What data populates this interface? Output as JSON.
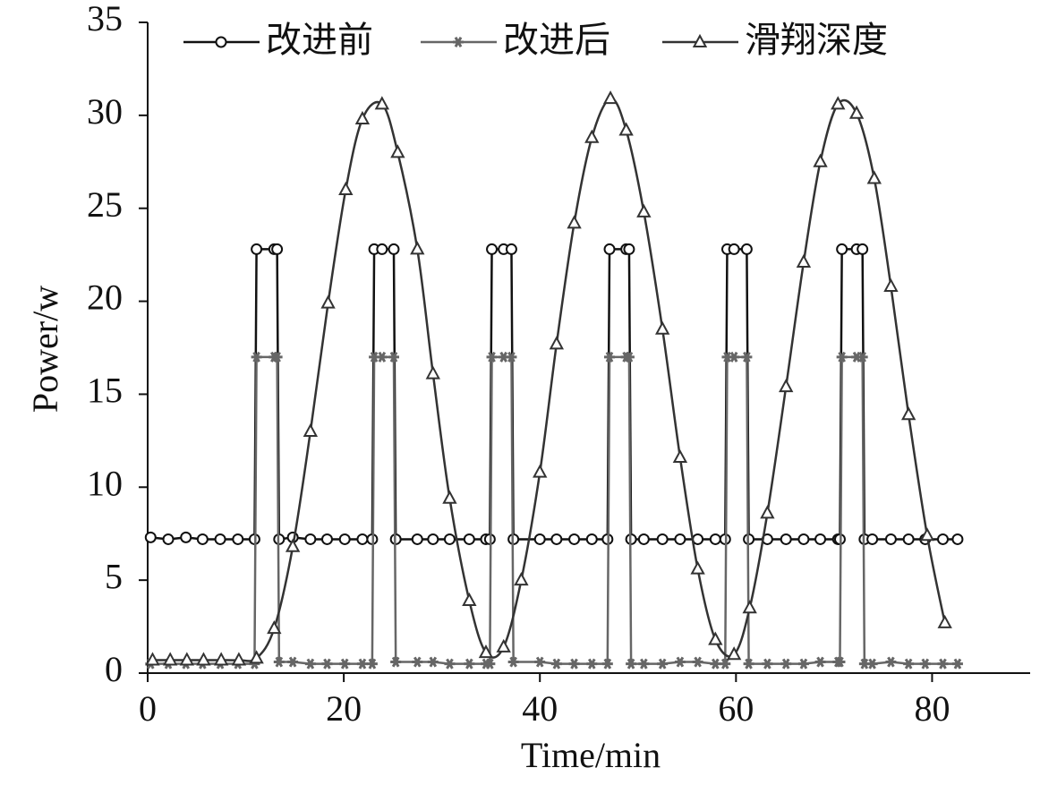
{
  "chart_data": {
    "type": "line",
    "xlabel": "Time/min",
    "ylabel": "Power/w",
    "xlim": [
      0,
      90
    ],
    "xticks": [
      0,
      20,
      40,
      60,
      80
    ],
    "ylim": [
      0,
      35
    ],
    "yticks": [
      0,
      5,
      10,
      15,
      20,
      25,
      30,
      35
    ],
    "legend": "upper center",
    "series": [
      {
        "name": "改进前",
        "color": "#111111",
        "marker": "circle",
        "smooth": false,
        "x": [
          0.3,
          2.1,
          3.9,
          5.6,
          7.4,
          9.2,
          10.9,
          11.1,
          12.9,
          13.2,
          13.4,
          14.8,
          16.6,
          18.3,
          20.1,
          21.9,
          22.9,
          23.1,
          23.9,
          25.1,
          25.3,
          27.5,
          29.1,
          30.8,
          32.8,
          34.5,
          34.9,
          35.1,
          36.3,
          37.1,
          37.3,
          40.0,
          41.7,
          43.5,
          45.3,
          46.9,
          47.1,
          48.8,
          49.1,
          49.3,
          50.6,
          52.5,
          54.3,
          56.1,
          57.9,
          58.9,
          59.1,
          59.8,
          61.1,
          61.3,
          63.2,
          65.1,
          66.9,
          68.6,
          70.4,
          70.6,
          70.8,
          72.3,
          72.9,
          73.1,
          73.9,
          75.8,
          77.6,
          79.3,
          81.1,
          82.6
        ],
        "values": [
          7.3,
          7.2,
          7.3,
          7.2,
          7.2,
          7.2,
          7.2,
          22.8,
          22.8,
          22.8,
          7.2,
          7.3,
          7.2,
          7.2,
          7.2,
          7.2,
          7.2,
          22.8,
          22.8,
          22.8,
          7.2,
          7.2,
          7.2,
          7.2,
          7.2,
          7.2,
          7.2,
          22.8,
          22.8,
          22.8,
          7.2,
          7.2,
          7.2,
          7.2,
          7.2,
          7.2,
          22.8,
          22.8,
          22.8,
          7.2,
          7.2,
          7.2,
          7.2,
          7.2,
          7.2,
          7.2,
          22.8,
          22.8,
          22.8,
          7.2,
          7.2,
          7.2,
          7.2,
          7.2,
          7.2,
          7.2,
          22.8,
          22.8,
          22.8,
          7.2,
          7.2,
          7.2,
          7.2,
          7.2,
          7.2,
          7.2
        ]
      },
      {
        "name": "改进后",
        "color": "#666666",
        "marker": "asterisk",
        "smooth": false,
        "x": [
          0.3,
          2.1,
          3.9,
          5.6,
          7.4,
          9.2,
          10.9,
          11.1,
          12.9,
          13.2,
          13.4,
          14.8,
          16.6,
          18.3,
          20.1,
          21.9,
          22.9,
          23.1,
          23.9,
          25.1,
          25.3,
          27.5,
          29.1,
          30.8,
          32.8,
          34.5,
          34.9,
          35.1,
          36.3,
          37.1,
          37.3,
          40.0,
          41.7,
          43.5,
          45.3,
          46.9,
          47.1,
          48.8,
          49.1,
          49.3,
          50.6,
          52.5,
          54.3,
          56.1,
          57.9,
          58.9,
          59.1,
          59.8,
          61.1,
          61.3,
          63.2,
          65.1,
          66.9,
          68.6,
          70.4,
          70.6,
          70.8,
          72.3,
          72.9,
          73.1,
          73.9,
          75.8,
          77.6,
          79.3,
          81.1,
          82.6
        ],
        "values": [
          0.5,
          0.5,
          0.5,
          0.5,
          0.5,
          0.5,
          0.5,
          17.0,
          17.0,
          17.0,
          0.6,
          0.6,
          0.5,
          0.5,
          0.5,
          0.5,
          0.5,
          17.0,
          17.0,
          17.0,
          0.6,
          0.6,
          0.6,
          0.5,
          0.5,
          0.5,
          0.5,
          17.0,
          17.0,
          17.0,
          0.6,
          0.6,
          0.5,
          0.5,
          0.5,
          0.5,
          17.0,
          17.0,
          17.0,
          0.5,
          0.5,
          0.5,
          0.6,
          0.6,
          0.5,
          0.5,
          17.0,
          17.0,
          17.0,
          0.5,
          0.5,
          0.5,
          0.5,
          0.6,
          0.6,
          0.6,
          17.0,
          17.0,
          17.0,
          0.5,
          0.5,
          0.6,
          0.5,
          0.5,
          0.5,
          0.5
        ]
      },
      {
        "name": "滑翔深度",
        "color": "#333333",
        "marker": "triangle",
        "smooth": true,
        "x": [
          0.5,
          2.3,
          4.0,
          5.7,
          7.5,
          9.3,
          11.1,
          12.9,
          14.8,
          16.6,
          18.4,
          20.2,
          21.9,
          23.9,
          25.5,
          27.5,
          29.1,
          30.8,
          32.8,
          34.5,
          36.3,
          38.1,
          40.0,
          41.7,
          43.5,
          45.3,
          47.2,
          48.8,
          50.6,
          52.5,
          54.3,
          56.1,
          57.9,
          59.8,
          61.4,
          63.2,
          65.1,
          66.9,
          68.6,
          70.4,
          72.3,
          74.1,
          75.8,
          77.6,
          79.5,
          81.3
        ],
        "values": [
          0.7,
          0.7,
          0.7,
          0.7,
          0.7,
          0.7,
          0.8,
          2.4,
          6.8,
          13.0,
          19.9,
          26.0,
          29.8,
          30.6,
          28.0,
          22.8,
          16.1,
          9.4,
          3.9,
          1.1,
          1.4,
          5.0,
          10.8,
          17.7,
          24.2,
          28.8,
          30.9,
          29.2,
          24.8,
          18.5,
          11.6,
          5.6,
          1.8,
          1.0,
          3.5,
          8.6,
          15.4,
          22.1,
          27.5,
          30.6,
          30.1,
          26.6,
          20.8,
          13.9,
          7.4,
          2.7
        ]
      }
    ]
  }
}
